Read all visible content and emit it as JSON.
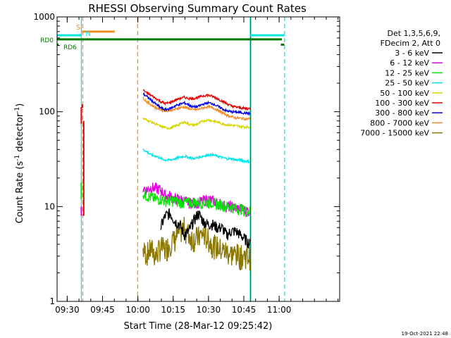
{
  "chart_data": {
    "type": "line",
    "title": "RHESSI Observing Summary Count Rates",
    "xlabel": "Start Time (28-Mar-12 09:25:42)",
    "ylabel_main": "Count Rate (s",
    "ylabel_sup1": "-1",
    "ylabel_mid": " detector",
    "ylabel_sup2": "-1",
    "ylabel_end": ")",
    "y_scale": "log",
    "ylim": [
      1,
      1000
    ],
    "xlim_minutes": [
      0,
      120
    ],
    "x_ticks": [
      {
        "minute": 4.3,
        "label": "09:30"
      },
      {
        "minute": 19.3,
        "label": "09:45"
      },
      {
        "minute": 34.3,
        "label": "10:00"
      },
      {
        "minute": 49.3,
        "label": "10:15"
      },
      {
        "minute": 64.3,
        "label": "10:30"
      },
      {
        "minute": 79.3,
        "label": "10:45"
      },
      {
        "minute": 94.3,
        "label": "11:00"
      }
    ],
    "y_ticks": [
      {
        "value": 1,
        "label": "1"
      },
      {
        "value": 10,
        "label": "10"
      },
      {
        "value": 100,
        "label": "100"
      },
      {
        "value": 1000,
        "label": "1000"
      }
    ],
    "legend_header": [
      "Det 1,3,5,6,9,",
      "FDecim 2, Att 0"
    ],
    "legend_placement": "right",
    "series": [
      {
        "name": "3 - 6 keV",
        "color": "#000000",
        "x": [
          44,
          46,
          48,
          50,
          52,
          54,
          56,
          58,
          60,
          62,
          64,
          66,
          68,
          70,
          72,
          74,
          76,
          78,
          80,
          82
        ],
        "values": [
          6,
          8,
          8.5,
          7,
          6.5,
          5,
          5.5,
          7,
          8.5,
          7,
          6.5,
          6.5,
          6,
          6,
          5,
          5.5,
          5.5,
          5,
          4.5,
          4
        ]
      },
      {
        "name": "6 - 12 keV",
        "color": "#e600e6",
        "x": [
          36.5,
          38,
          40,
          42,
          44,
          46,
          48,
          50,
          52,
          54,
          56,
          58,
          60,
          62,
          64,
          66,
          68,
          70,
          72,
          74,
          76,
          78,
          80,
          82
        ],
        "values": [
          16,
          15,
          16,
          15.5,
          15,
          13,
          13,
          12,
          12,
          11.5,
          11,
          11,
          11,
          11.5,
          12,
          11.5,
          11,
          10.5,
          10,
          10,
          9.5,
          9.5,
          9,
          9
        ]
      },
      {
        "name": "12 - 25 keV",
        "color": "#00e600",
        "x": [
          36.5,
          38,
          40,
          42,
          44,
          46,
          48,
          50,
          52,
          54,
          56,
          58,
          60,
          62,
          64,
          66,
          68,
          70,
          72,
          74,
          76,
          78,
          80,
          82
        ],
        "values": [
          14,
          13,
          12.5,
          12,
          12,
          11.5,
          11.5,
          11.5,
          11,
          11,
          11,
          11,
          11,
          11,
          11,
          11,
          10.5,
          10.5,
          10,
          10,
          9.5,
          9.5,
          9,
          9
        ]
      },
      {
        "name": "25 - 50 keV",
        "color": "#00e6e6",
        "x": [
          36.5,
          38,
          40,
          42,
          44,
          46,
          48,
          50,
          52,
          54,
          56,
          58,
          60,
          62,
          64,
          66,
          68,
          70,
          72,
          74,
          76,
          78,
          80,
          82
        ],
        "values": [
          40,
          38,
          35,
          34,
          32,
          31,
          31,
          32,
          33,
          34,
          33,
          32,
          33,
          34,
          35,
          35,
          34,
          33,
          32,
          32,
          31,
          31,
          30,
          30
        ]
      },
      {
        "name": "50 - 100 keV",
        "color": "#d8d800",
        "x": [
          36.5,
          38,
          40,
          42,
          44,
          46,
          48,
          50,
          52,
          54,
          56,
          58,
          60,
          62,
          64,
          66,
          68,
          70,
          72,
          74,
          76,
          78,
          80,
          82
        ],
        "values": [
          85,
          82,
          78,
          74,
          70,
          68,
          67,
          70,
          74,
          78,
          74,
          72,
          75,
          80,
          82,
          80,
          78,
          75,
          73,
          72,
          71,
          70,
          69,
          69
        ]
      },
      {
        "name": "100 - 300 keV",
        "color": "#e60000",
        "x": [
          36.5,
          38,
          40,
          42,
          44,
          46,
          48,
          50,
          52,
          54,
          56,
          58,
          60,
          62,
          64,
          66,
          68,
          70,
          72,
          74,
          76,
          78,
          80,
          82
        ],
        "values": [
          170,
          158,
          148,
          138,
          128,
          122,
          125,
          132,
          138,
          142,
          138,
          138,
          142,
          147,
          150,
          145,
          138,
          130,
          122,
          115,
          112,
          110,
          108,
          108
        ]
      },
      {
        "name": "300 - 800 keV",
        "color": "#0000e6",
        "x": [
          36.5,
          38,
          40,
          42,
          44,
          46,
          48,
          50,
          52,
          54,
          56,
          58,
          60,
          62,
          64,
          66,
          68,
          70,
          72,
          74,
          76,
          78,
          80,
          82
        ],
        "values": [
          155,
          145,
          132,
          120,
          110,
          105,
          108,
          115,
          120,
          124,
          118,
          112,
          114,
          120,
          124,
          122,
          115,
          108,
          102,
          100,
          99,
          98,
          97,
          96
        ]
      },
      {
        "name": "800 - 7000 keV",
        "color": "#f08c28",
        "x": [
          36.5,
          38,
          40,
          42,
          44,
          46,
          48,
          50,
          52,
          54,
          56,
          58,
          60,
          62,
          64,
          66,
          68,
          70,
          72,
          74,
          76,
          78,
          80,
          82
        ],
        "values": [
          140,
          128,
          118,
          110,
          105,
          103,
          103,
          106,
          110,
          112,
          108,
          105,
          106,
          110,
          113,
          110,
          105,
          98,
          92,
          89,
          86,
          85,
          84,
          84
        ]
      },
      {
        "name": "7000 - 15000 keV",
        "color": "#8c7800",
        "x": [
          36.5,
          38,
          40,
          42,
          44,
          46,
          48,
          50,
          52,
          54,
          56,
          58,
          60,
          62,
          64,
          66,
          68,
          70,
          72,
          74,
          76,
          78,
          80,
          82
        ],
        "values": [
          3.5,
          3.2,
          3.6,
          3.0,
          3.8,
          3.5,
          4.2,
          4.5,
          5.5,
          6.0,
          5.0,
          4.6,
          4.8,
          5.2,
          4.6,
          4.0,
          3.8,
          3.5,
          3.4,
          3.2,
          3.2,
          3.0,
          3.1,
          3.0
        ]
      }
    ],
    "spike": {
      "x": [
        9.5,
        10.3,
        10.8,
        11.3
      ],
      "values": [
        [
          1,
          1
        ],
        [
          75,
          112
        ],
        [
          110,
          120
        ],
        [
          8,
          80
        ]
      ]
    },
    "flag_bars": [
      {
        "label": "S",
        "color": "#f08c28",
        "start": 10.6,
        "end": 24.5,
        "level": 700
      },
      {
        "label": "N",
        "color": "#00e6e6",
        "start": 0,
        "end": 10.3,
        "level": 640
      },
      {
        "label": "",
        "color": "#00e6e6",
        "start": 82,
        "end": 96.5,
        "level": 640
      },
      {
        "label": "RD0",
        "color": "#007800",
        "start": 0,
        "end": 95.5,
        "level": 580
      },
      {
        "label": "RD6",
        "color": "#007800",
        "start": 0,
        "end": 0.6,
        "level": 510
      },
      {
        "label": "",
        "color": "#007800",
        "start": 95,
        "end": 96.5,
        "level": 510
      }
    ],
    "vertical_markers": [
      {
        "minute": 10.3,
        "color": "#00e6e6",
        "style": "solid"
      },
      {
        "minute": 10.9,
        "color": "#f08c28",
        "style": "dashed"
      },
      {
        "minute": 34.2,
        "color": "#f08c28",
        "style": "dashed"
      },
      {
        "minute": 82.0,
        "color": "#00e6e6",
        "style": "solid"
      },
      {
        "minute": 82.2,
        "color": "#007800",
        "style": "solid"
      },
      {
        "minute": 96.6,
        "color": "#00e6e6",
        "style": "dashed"
      }
    ]
  },
  "footer_timestamp": "19-Oct-2021 22:48"
}
